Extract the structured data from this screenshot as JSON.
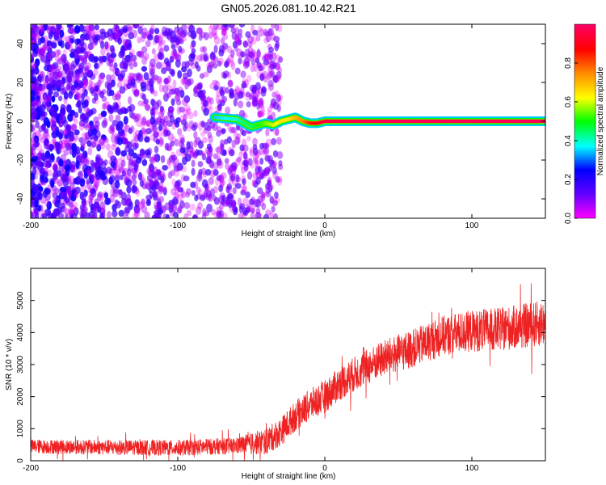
{
  "chart_data": [
    {
      "type": "heatmap",
      "title": "GN05.2026.081.10.42.R21",
      "xlabel": "Height of straight line (km)",
      "ylabel": "Frequency (Hz)",
      "xlim": [
        -200,
        150
      ],
      "ylim": [
        -50,
        50
      ],
      "xticks": [
        -200,
        -100,
        0,
        100
      ],
      "yticks": [
        -40,
        -20,
        0,
        20,
        40
      ],
      "colorbar": {
        "label": "Normalized spectral amplitude",
        "range": [
          0,
          1
        ],
        "ticks": [
          0.0,
          0.2,
          0.4,
          0.6,
          0.8
        ],
        "tick_labels": [
          "0.0",
          "0.2",
          "0.4",
          "0.6",
          "0.8"
        ],
        "colors": [
          "#ff00ff",
          "#6600ff",
          "#0000ff",
          "#00ffff",
          "#00ff00",
          "#ffff00",
          "#ff8800",
          "#ff0000",
          "#ff0066"
        ]
      },
      "features": {
        "noise_region_x": [
          -200,
          -40
        ],
        "noise_amplitude": 0.15,
        "signal_track": {
          "x": [
            -75,
            -60,
            -55,
            -50,
            -45,
            -40,
            -35,
            -30,
            -25,
            -20,
            -15,
            -10,
            -5,
            0,
            50,
            150
          ],
          "y": [
            2,
            1,
            -1,
            -3,
            -2,
            -1,
            -2,
            0,
            1,
            2,
            0,
            -1,
            -1,
            0,
            0,
            0
          ],
          "amplitude": [
            0.35,
            0.4,
            0.45,
            0.45,
            0.5,
            0.55,
            0.6,
            0.65,
            0.65,
            0.7,
            0.75,
            0.85,
            0.9,
            0.95,
            0.98,
            0.98
          ]
        }
      }
    },
    {
      "type": "line",
      "xlabel": "Height of straight line (km)",
      "ylabel": "SNR (10 * v/v)",
      "xlim": [
        -200,
        150
      ],
      "ylim": [
        0,
        6000
      ],
      "xticks": [
        -200,
        -100,
        0,
        100
      ],
      "yticks": [
        0,
        1000,
        2000,
        3000,
        4000,
        5000
      ],
      "color": "#ee2222",
      "trend": {
        "x": [
          -200,
          -150,
          -100,
          -60,
          -40,
          -30,
          -20,
          -10,
          0,
          10,
          20,
          40,
          60,
          80,
          100,
          120,
          150
        ],
        "y": [
          450,
          420,
          400,
          470,
          600,
          900,
          1400,
          1750,
          2000,
          2400,
          2700,
          3200,
          3500,
          3900,
          4050,
          4100,
          4300
        ]
      },
      "noise_amplitude": {
        "x": [
          -200,
          -60,
          -40,
          0,
          60,
          150
        ],
        "y": [
          220,
          260,
          420,
          520,
          600,
          720
        ]
      }
    }
  ]
}
